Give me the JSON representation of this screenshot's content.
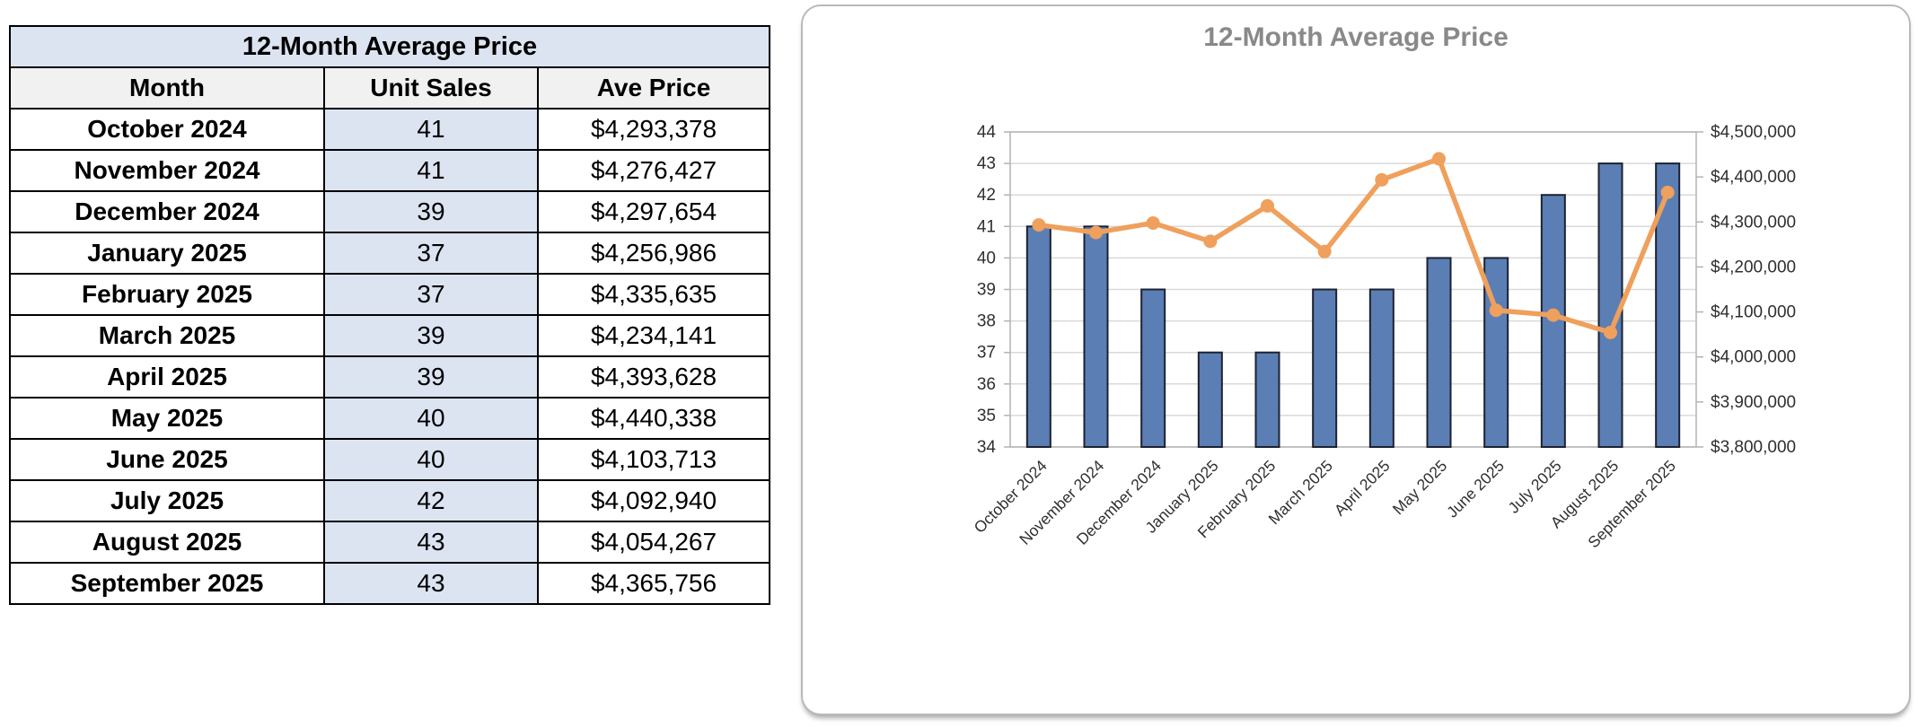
{
  "table": {
    "title": "12-Month Average Price",
    "columns": [
      "Month",
      "Unit Sales",
      "Ave Price"
    ],
    "rows": [
      {
        "month": "October 2024",
        "unit_sales": "41",
        "ave_price": "$4,293,378"
      },
      {
        "month": "November 2024",
        "unit_sales": "41",
        "ave_price": "$4,276,427"
      },
      {
        "month": "December 2024",
        "unit_sales": "39",
        "ave_price": "$4,297,654"
      },
      {
        "month": "January 2025",
        "unit_sales": "37",
        "ave_price": "$4,256,986"
      },
      {
        "month": "February 2025",
        "unit_sales": "37",
        "ave_price": "$4,335,635"
      },
      {
        "month": "March 2025",
        "unit_sales": "39",
        "ave_price": "$4,234,141"
      },
      {
        "month": "April 2025",
        "unit_sales": "39",
        "ave_price": "$4,393,628"
      },
      {
        "month": "May 2025",
        "unit_sales": "40",
        "ave_price": "$4,440,338"
      },
      {
        "month": "June 2025",
        "unit_sales": "40",
        "ave_price": "$4,103,713"
      },
      {
        "month": "July 2025",
        "unit_sales": "42",
        "ave_price": "$4,092,940"
      },
      {
        "month": "August 2025",
        "unit_sales": "43",
        "ave_price": "$4,054,267"
      },
      {
        "month": "September 2025",
        "unit_sales": "43",
        "ave_price": "$4,365,756"
      }
    ]
  },
  "chart_data": {
    "type": "bar",
    "subtype": "combo-bar-line",
    "title": "12-Month Average Price",
    "categories": [
      "October 2024",
      "November 2024",
      "December 2024",
      "January 2025",
      "February 2025",
      "March 2025",
      "April 2025",
      "May 2025",
      "June 2025",
      "July 2025",
      "August 2025",
      "September 2025"
    ],
    "series": [
      {
        "name": "Unit Sales",
        "chart": "bar",
        "axis": "left",
        "values": [
          41,
          41,
          39,
          37,
          37,
          39,
          39,
          40,
          40,
          42,
          43,
          43
        ]
      },
      {
        "name": "Ave Price",
        "chart": "line",
        "axis": "right",
        "values": [
          4293378,
          4276427,
          4297654,
          4256986,
          4335635,
          4234141,
          4393628,
          4440338,
          4103713,
          4092940,
          4054267,
          4365756
        ]
      }
    ],
    "left_axis": {
      "min": 34,
      "max": 44,
      "step": 1
    },
    "right_axis": {
      "min": 3800000,
      "max": 4500000,
      "step": 100000,
      "prefix": "$"
    },
    "grid": true,
    "legend": "none",
    "colors": {
      "bar_fill": "#5b7eb5",
      "bar_border": "#1c2230",
      "line": "#efa05c",
      "grid": "#d9d9d9",
      "axis_line": "#b3b3b3",
      "tick_label": "#2f2f2f",
      "title": "#898989"
    }
  }
}
